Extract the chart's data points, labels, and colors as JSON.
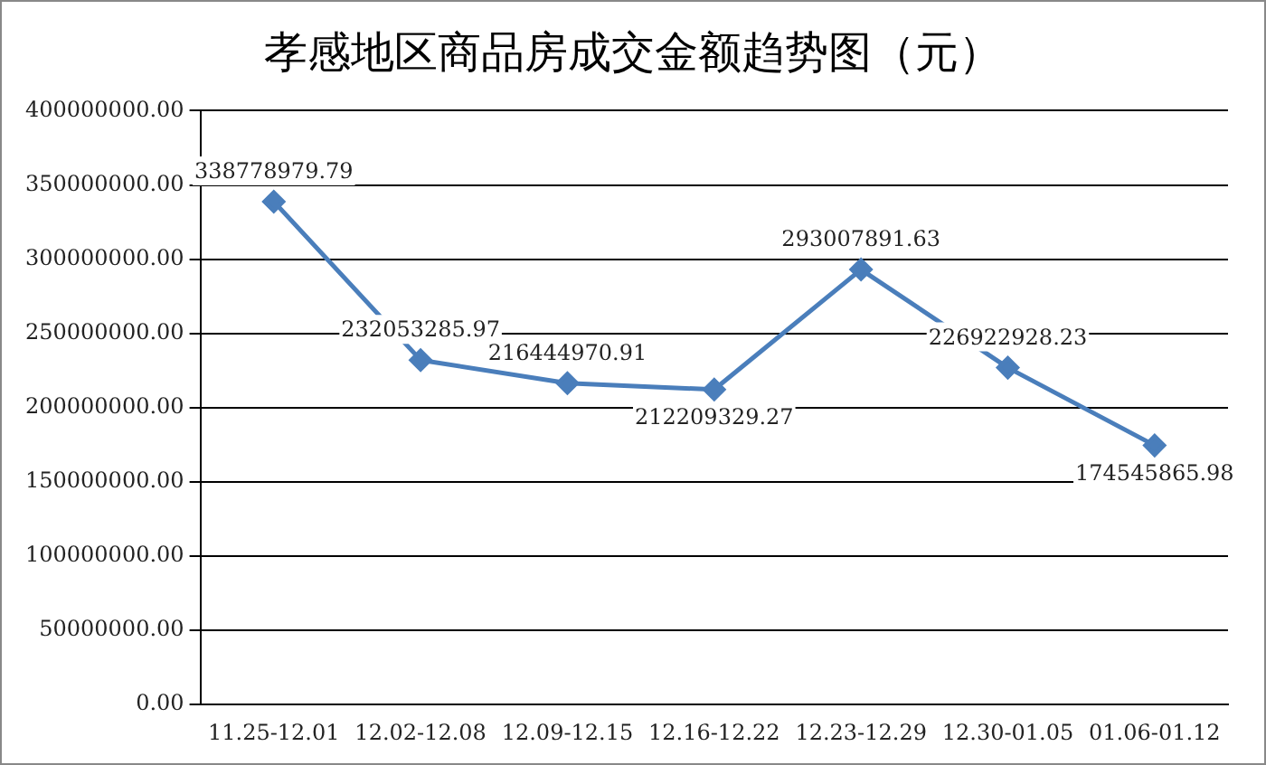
{
  "chart_data": {
    "type": "line",
    "title": "孝感地区商品房成交金额趋势图（元）",
    "categories": [
      "11.25-12.01",
      "12.02-12.08",
      "12.09-12.15",
      "12.16-12.22",
      "12.23-12.29",
      "12.30-01.05",
      "01.06-01.12"
    ],
    "series": [
      {
        "color": "#4a7ebb",
        "values": [
          338778979.79,
          232053285.97,
          216444970.91,
          212209329.27,
          293007891.63,
          226922928.23,
          174545865.98
        ]
      }
    ],
    "ylim": [
      0,
      400000000
    ],
    "yticks": [
      {
        "value": 0,
        "label": "0.00"
      },
      {
        "value": 50000000,
        "label": "50000000.00"
      },
      {
        "value": 100000000,
        "label": "100000000.00"
      },
      {
        "value": 150000000,
        "label": "150000000.00"
      },
      {
        "value": 200000000,
        "label": "200000000.00"
      },
      {
        "value": 250000000,
        "label": "250000000.00"
      },
      {
        "value": 300000000,
        "label": "300000000.00"
      },
      {
        "value": 350000000,
        "label": "350000000.00"
      },
      {
        "value": 400000000,
        "label": "400000000.00"
      }
    ],
    "grid": "y",
    "legend": false,
    "marker": "diamond",
    "line_style": "solid",
    "data_labels": true
  }
}
